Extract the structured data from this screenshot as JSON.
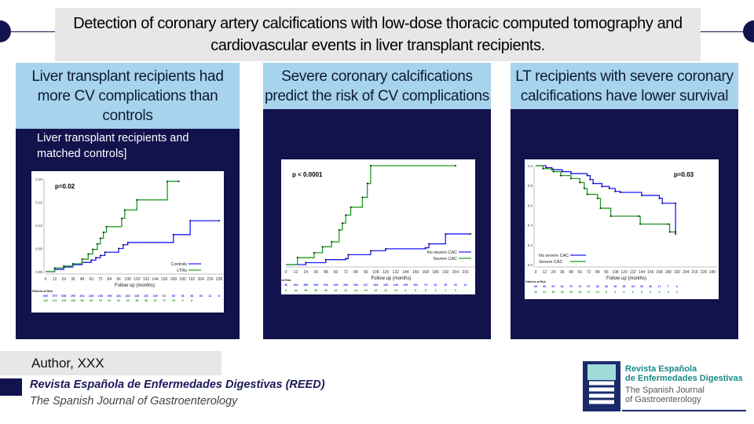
{
  "title": "Detection of coronary artery calcifications with low-dose thoracic computed tomography and cardiovascular events in liver transplant recipients.",
  "panels": [
    {
      "heading": "Liver transplant recipients had more CV complications than controls",
      "subtitle": "Liver transplant recipients and matched controls]"
    },
    {
      "heading": "Severe coronary calcifications predict the risk of CV complications"
    },
    {
      "heading": "LT recipients with severe coronary calcifications have lower survival"
    }
  ],
  "author": "Author, XXX",
  "journal": {
    "name": "Revista Española de Enfermedades Digestivas (REED)",
    "subtitle": "The Spanish Journal of Gastroenterology"
  },
  "logo": {
    "line1": "Revista Española",
    "line2": "de Enfermedades Digestivas",
    "line3": "The Spanish Journal",
    "line4": "of Gastroenterology"
  },
  "colors": {
    "navy": "#12124d",
    "header": "#a8d3ec",
    "blue": "#1a1aff",
    "green": "#1f9a1f"
  },
  "chart_data": [
    {
      "type": "line",
      "pvalue": "p=0.02",
      "xlabel": "Follow up (months)",
      "risk_label": "Patients at Risk",
      "xlim": [
        0,
        228
      ],
      "ylim": [
        0,
        0.2
      ],
      "yticks": [
        "0.00",
        "0.05",
        "0.10",
        "0.15",
        "0.20"
      ],
      "xticks": [
        0,
        12,
        24,
        36,
        48,
        60,
        72,
        84,
        96,
        108,
        120,
        132,
        144,
        156,
        168,
        180,
        192,
        204,
        216,
        228
      ],
      "series": [
        {
          "name": "Controls",
          "color": "#1a1aff",
          "x": [
            0,
            12,
            24,
            36,
            48,
            60,
            66,
            72,
            78,
            96,
            102,
            108,
            168,
            190,
            228
          ],
          "y": [
            0,
            0.005,
            0.01,
            0.015,
            0.02,
            0.025,
            0.03,
            0.035,
            0.042,
            0.05,
            0.058,
            0.063,
            0.08,
            0.11,
            0.11
          ],
          "risk": [
            "600",
            "575",
            "538",
            "296",
            "264",
            "238",
            "238",
            "198",
            "181",
            "162",
            "140",
            "133",
            "108",
            "81",
            "65",
            "46",
            "38",
            "30",
            "12",
            "8"
          ]
        },
        {
          "name": "LTRs",
          "color": "#1f9a1f",
          "x": [
            0,
            12,
            24,
            36,
            48,
            56,
            62,
            68,
            72,
            76,
            80,
            100,
            104,
            120,
            160,
            175
          ],
          "y": [
            0,
            0.008,
            0.012,
            0.017,
            0.027,
            0.038,
            0.048,
            0.06,
            0.072,
            0.085,
            0.097,
            0.115,
            0.133,
            0.155,
            0.195,
            0.195
          ],
          "risk": [
            "132",
            "121",
            "115",
            "108",
            "98",
            "94",
            "79",
            "62",
            "51",
            "43",
            "38",
            "35",
            "31",
            "27",
            "19",
            "9",
            "8"
          ]
        }
      ]
    },
    {
      "type": "line",
      "pvalue": "p < 0.0001",
      "xlabel": "Follow up (months)",
      "risk_label": "at Risk",
      "xlim": [
        0,
        222
      ],
      "ylim": [
        0,
        1
      ],
      "yticks": [],
      "xticks": [
        0,
        12,
        24,
        36,
        48,
        60,
        72,
        84,
        96,
        108,
        120,
        132,
        144,
        156,
        168,
        180,
        192,
        204,
        216
      ],
      "series": [
        {
          "name": "No severe CAC",
          "color": "#1a1aff",
          "x": [
            0,
            24,
            48,
            72,
            75,
            102,
            120,
            168,
            172,
            192,
            222
          ],
          "y": [
            0,
            0.02,
            0.05,
            0.06,
            0.1,
            0.14,
            0.16,
            0.17,
            0.21,
            0.31,
            0.31
          ],
          "risk": [
            "36",
            "432",
            "386",
            "349",
            "316",
            "290",
            "266",
            "236",
            "217",
            "193",
            "166",
            "146",
            "125",
            "103",
            "74",
            "51",
            "29",
            "20",
            "12"
          ]
        },
        {
          "name": "Severe CAC",
          "color": "#1f9a1f",
          "x": [
            0,
            14,
            34,
            44,
            55,
            64,
            68,
            72,
            78,
            92,
            98,
            102,
            204
          ],
          "y": [
            0,
            0.07,
            0.12,
            0.18,
            0.23,
            0.35,
            0.42,
            0.5,
            0.58,
            0.68,
            0.82,
            1,
            1
          ],
          "risk": [
            "6",
            "64",
            "59",
            "55",
            "46",
            "42",
            "31",
            "24",
            "19",
            "12",
            "12",
            "10",
            "6",
            "5",
            "5",
            "4",
            "1",
            "0"
          ]
        }
      ]
    },
    {
      "type": "line",
      "pvalue": "p=0.03",
      "xlabel": "Follow up (months)",
      "risk_label": "Patients at Risk",
      "xlim": [
        0,
        240
      ],
      "ylim": [
        0,
        1
      ],
      "yticks": [
        "0.0",
        "0.2",
        "0.4",
        "0.6",
        "0.8",
        "1.0"
      ],
      "xticks": [
        0,
        12,
        24,
        36,
        48,
        60,
        72,
        84,
        96,
        108,
        120,
        132,
        144,
        156,
        168,
        180,
        192,
        204,
        216,
        228,
        240
      ],
      "series": [
        {
          "name": "No severe CAC",
          "color": "#1a1aff",
          "x": [
            0,
            14,
            22,
            36,
            48,
            70,
            74,
            78,
            90,
            100,
            108,
            115,
            144,
            168,
            172,
            190,
            190
          ],
          "y": [
            1,
            0.98,
            0.96,
            0.94,
            0.92,
            0.9,
            0.86,
            0.82,
            0.79,
            0.77,
            0.74,
            0.73,
            0.7,
            0.67,
            0.62,
            0.62,
            0.31
          ],
          "risk": [
            "90",
            "90",
            "87",
            "81",
            "76",
            "74",
            "67",
            "52",
            "46",
            "40",
            "36",
            "33",
            "30",
            "26",
            "17",
            "7",
            "0"
          ]
        },
        {
          "name": "Severe CAC",
          "color": "#1f9a1f",
          "x": [
            0,
            10,
            24,
            34,
            48,
            60,
            66,
            70,
            84,
            88,
            102,
            140,
            142,
            180,
            182,
            190
          ],
          "y": [
            1,
            0.97,
            0.94,
            0.9,
            0.87,
            0.83,
            0.77,
            0.71,
            0.67,
            0.57,
            0.49,
            0.49,
            0.41,
            0.41,
            0.33,
            0.33
          ],
          "risk": [
            "33",
            "31",
            "30",
            "26",
            "25",
            "23",
            "17",
            "14",
            "8",
            "6",
            "6",
            "6",
            "5",
            "5",
            "5",
            "4",
            "0"
          ]
        }
      ]
    }
  ]
}
